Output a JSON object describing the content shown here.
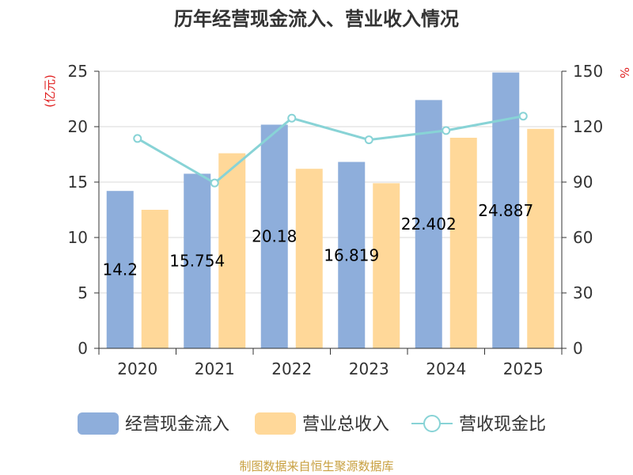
{
  "chart_data": {
    "type": "bar",
    "title": "历年经营现金流入、营业收入情况",
    "categories": [
      "2020",
      "2021",
      "2022",
      "2023",
      "2024",
      "2025"
    ],
    "series": [
      {
        "name": "经营现金流入",
        "axis": "left",
        "kind": "bar",
        "color": "#8eaedb",
        "values": [
          14.2,
          15.754,
          20.18,
          16.819,
          22.402,
          24.887
        ],
        "labels": [
          "14.2",
          "15.754",
          "20.18",
          "16.819",
          "22.402",
          "24.887"
        ]
      },
      {
        "name": "营业总收入",
        "axis": "left",
        "kind": "bar",
        "color": "#ffd899",
        "values": [
          12.5,
          17.6,
          16.2,
          14.9,
          19.0,
          19.8
        ]
      },
      {
        "name": "营收现金比",
        "axis": "right",
        "kind": "line",
        "color": "#88d3d6",
        "values": [
          113.6,
          89.5,
          124.6,
          112.9,
          117.9,
          125.7
        ]
      }
    ],
    "yleft": {
      "label": "(亿元)",
      "ylim": [
        0,
        25
      ],
      "ticks": [
        0,
        5,
        10,
        15,
        20,
        25
      ]
    },
    "yright": {
      "label": "%",
      "ylim": [
        0,
        150
      ],
      "ticks": [
        0,
        30,
        60,
        90,
        120,
        150
      ]
    },
    "grid": true,
    "legend_position": "bottom",
    "source": "制图数据来自恒生聚源数据库"
  }
}
